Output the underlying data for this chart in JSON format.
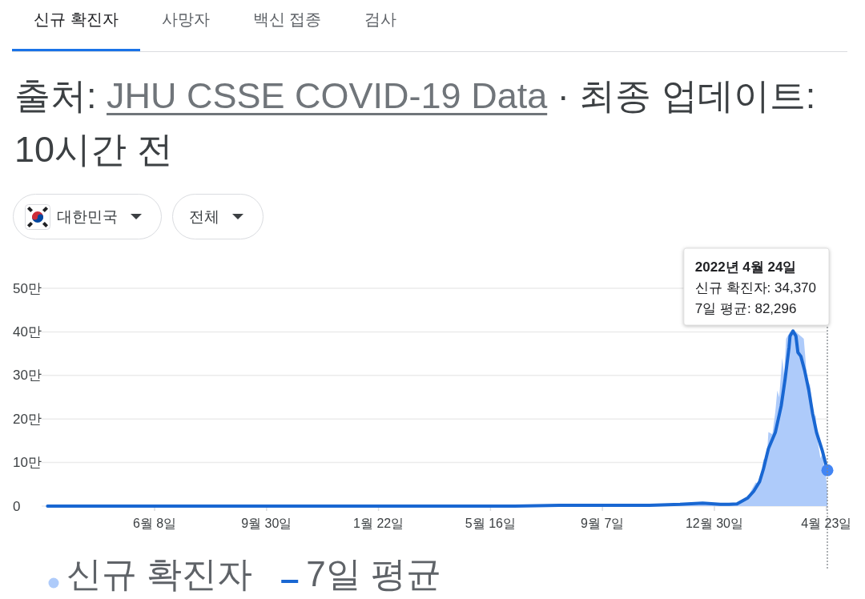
{
  "chart_data": {
    "type": "line",
    "annotations": [
      "신규 확진자",
      "사망자",
      "백신 접종",
      "검사",
      "출처:",
      "JHU CSSE COVID-19 Data",
      "· 최종 업데이트: 10시간 전",
      "대한민국",
      "전체",
      "2022년 4월 24일\n신규 확진자: 34,370\n7일 평균: 82,296"
    ],
    "xlim": [
      "2020-02-14",
      "2022-04-24"
    ],
    "xticks": [
      {
        "value": "2020-06-08",
        "label": "6월 8일"
      },
      {
        "value": "2020-09-30",
        "label": "9월 30일"
      },
      {
        "value": "2021-01-22",
        "label": "1월 22일"
      },
      {
        "value": "2021-05-16",
        "label": "5월 16일"
      },
      {
        "value": "2021-09-07",
        "label": "9월 7일"
      },
      {
        "value": "2021-12-30",
        "label": "12월 30일"
      },
      {
        "value": "2022-04-23",
        "label": "4월 23일"
      }
    ],
    "ylim": [
      0,
      50
    ],
    "yticks": [
      0,
      {
        "value": 10,
        "label": "10만"
      },
      {
        "value": 20,
        "label": "20만"
      },
      {
        "value": 30,
        "label": "30만"
      },
      {
        "value": 40,
        "label": "40만"
      },
      {
        "value": 50,
        "label": "50만"
      }
    ],
    "grid": "y",
    "legend": "bottom",
    "ref_lines": [
      {
        "axis": "x",
        "value": "2022-04-24",
        "color": "#80868b",
        "line_style": "dotted"
      }
    ],
    "series": [
      {
        "name": "신규 확진자",
        "type": "area",
        "color": "#aecbfa",
        "x": [
          "2020-02-20",
          "2021-06-10",
          "2021-07-25",
          "2021-10-25",
          "2021-11-25",
          "2021-12-18",
          "2022-01-05",
          "2022-01-14",
          "2022-01-22",
          "2022-02-02",
          "2022-02-06",
          "2022-02-10",
          "2022-02-14",
          "2022-02-18",
          "2022-02-21",
          "2022-02-23",
          "2022-02-27",
          "2022-03-02",
          "2022-03-04",
          "2022-03-06",
          "2022-03-09",
          "2022-03-11",
          "2022-03-13",
          "2022-03-17",
          "2022-03-23",
          "2022-03-31",
          "2022-04-02",
          "2022-04-04",
          "2022-04-06",
          "2022-04-08",
          "2022-04-10",
          "2022-04-12",
          "2022-04-14",
          "2022-04-17",
          "2022-04-19",
          "2022-04-21",
          "2022-04-23",
          "2022-04-24"
        ],
        "values": [
          0,
          0,
          0.2,
          0.2,
          0.4,
          0.7,
          0.4,
          0.4,
          0.7,
          2,
          3.8,
          5.4,
          5,
          10.8,
          10,
          17,
          16.5,
          21.6,
          26.5,
          25,
          34,
          30,
          38.4,
          40,
          40,
          38.4,
          33,
          26,
          28.3,
          25,
          20,
          21,
          15,
          11,
          12,
          8.6,
          6,
          3.437
        ]
      },
      {
        "name": "7일 평균",
        "color": "#1967d2",
        "x": [
          "2020-02-20",
          "2021-06-10",
          "2021-07-25",
          "2021-10-25",
          "2021-11-25",
          "2021-12-18",
          "2022-01-05",
          "2022-01-14",
          "2022-01-22",
          "2022-02-02",
          "2022-02-08",
          "2022-02-14",
          "2022-02-18",
          "2022-02-23",
          "2022-03-02",
          "2022-03-08",
          "2022-03-12",
          "2022-03-16",
          "2022-03-17",
          "2022-03-20",
          "2022-03-23",
          "2022-03-25",
          "2022-03-28",
          "2022-04-01",
          "2022-04-05",
          "2022-04-09",
          "2022-04-13",
          "2022-04-19",
          "2022-04-24"
        ],
        "values": [
          0,
          0,
          0.2,
          0.2,
          0.4,
          0.7,
          0.4,
          0.4,
          0.5,
          1.9,
          3.4,
          5.6,
          8.6,
          13.2,
          16.9,
          23,
          29.2,
          36.5,
          39,
          40.2,
          39,
          35.3,
          34.4,
          31,
          26.7,
          21.2,
          16.9,
          12.6,
          8.2296
        ]
      },
      {
        "type": "scatter",
        "marker": "circle",
        "color": "#4285f4",
        "x": [
          "2022-04-24"
        ],
        "values": [
          8.2296
        ]
      }
    ]
  }
}
